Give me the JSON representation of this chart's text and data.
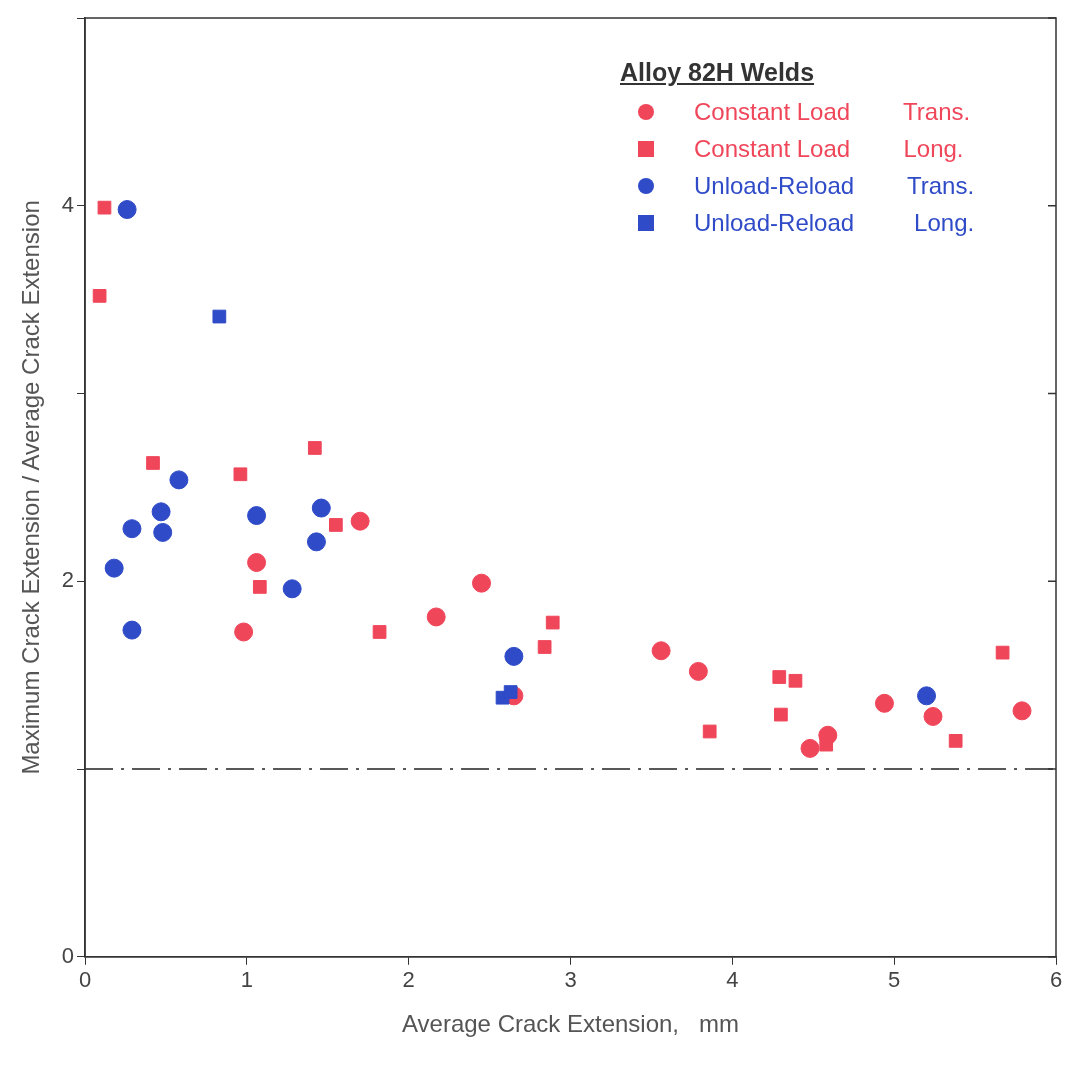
{
  "chart_data": {
    "type": "scatter",
    "xlabel": "Average Crack Extension,   mm",
    "ylabel": "Maximum Crack Extension / Average Crack Extension",
    "legend_title": "Alloy 82H Welds",
    "legend": "top right",
    "grid": false,
    "xlim": [
      0,
      6
    ],
    "xticks": [
      0,
      1,
      2,
      3,
      4,
      5,
      6
    ],
    "ylim": [
      0,
      5
    ],
    "yticks": [
      0,
      {
        "value": 1,
        "label": null
      },
      2,
      {
        "value": 3,
        "label": null
      },
      4,
      {
        "value": 5,
        "label": null
      }
    ],
    "ref_lines": [
      {
        "axis": "y",
        "value": 1,
        "color": "#222222",
        "line_style": "dashdot"
      }
    ],
    "series": [
      {
        "name": "Constant Load        Trans.",
        "color": "#f0465a",
        "marker": "circle",
        "x": [
          1.06,
          0.98,
          1.7,
          2.17,
          2.45,
          2.65,
          3.56,
          3.79,
          4.48,
          4.59,
          4.94,
          5.24,
          5.79
        ],
        "values": [
          2.1,
          1.73,
          2.32,
          1.81,
          1.99,
          1.39,
          1.63,
          1.52,
          1.11,
          1.18,
          1.35,
          1.28,
          1.31
        ]
      },
      {
        "name": "Constant Load        Long.",
        "color": "#f0465a",
        "marker": "square",
        "x": [
          0.12,
          0.09,
          0.42,
          0.96,
          1.42,
          1.08,
          1.55,
          1.82,
          2.84,
          2.89,
          3.86,
          4.29,
          4.3,
          4.39,
          4.58,
          5.38,
          5.67
        ],
        "values": [
          3.99,
          3.52,
          2.63,
          2.57,
          2.71,
          1.97,
          2.3,
          1.73,
          1.65,
          1.78,
          1.2,
          1.49,
          1.29,
          1.47,
          1.13,
          1.15,
          1.62
        ]
      },
      {
        "name": "Unload-Reload        Trans.",
        "color": "#2f4bc8",
        "marker": "circle",
        "x": [
          0.26,
          0.18,
          0.29,
          0.29,
          0.47,
          0.48,
          0.58,
          1.06,
          1.28,
          1.43,
          1.46,
          2.65,
          5.2
        ],
        "values": [
          3.98,
          2.07,
          1.74,
          2.28,
          2.37,
          2.26,
          2.54,
          2.35,
          1.96,
          2.21,
          2.39,
          1.6,
          1.39
        ]
      },
      {
        "name": "Unload-Reload         Long.",
        "color": "#2f4bc8",
        "marker": "square",
        "x": [
          0.83,
          2.58,
          2.63
        ],
        "values": [
          3.41,
          1.38,
          1.41
        ]
      }
    ]
  }
}
